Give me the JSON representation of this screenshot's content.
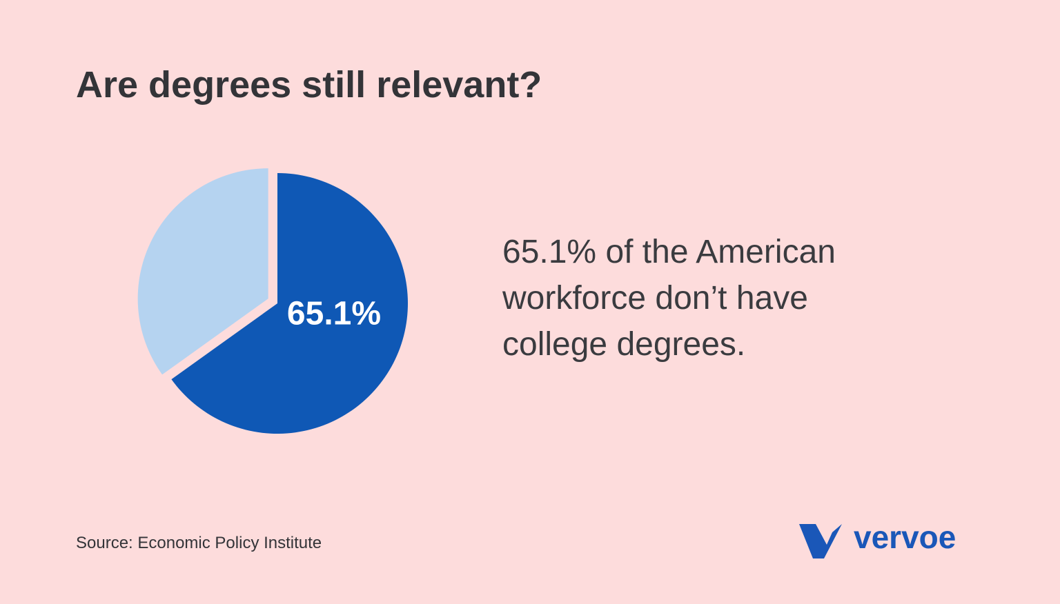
{
  "chart_data": {
    "type": "pie",
    "title": "Are degrees still relevant?",
    "values": [
      65.1,
      34.9
    ],
    "value_labels": [
      "65.1%",
      null
    ],
    "colors": [
      "#0f58b5",
      "#b5d3f0"
    ],
    "explode": [
      false,
      true
    ],
    "annotation_lines": [
      "65.1% of the American",
      "workforce don’t have",
      "college degrees."
    ],
    "source": "Source: Economic Policy Institute"
  },
  "logo": {
    "text": "vervoe"
  }
}
